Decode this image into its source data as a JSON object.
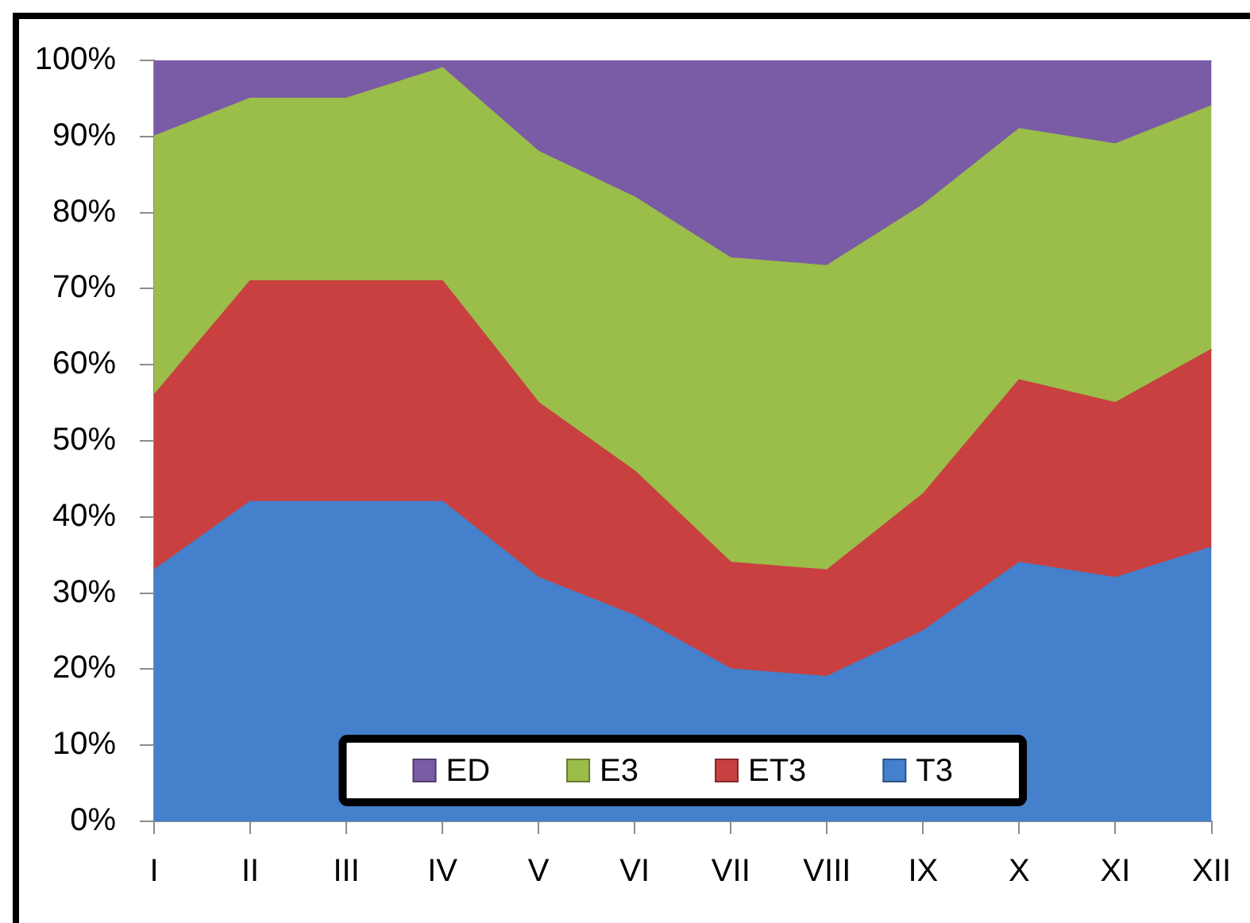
{
  "chart_data": {
    "type": "area",
    "stacked": true,
    "categories": [
      "I",
      "II",
      "III",
      "IV",
      "V",
      "VI",
      "VII",
      "VIII",
      "IX",
      "X",
      "XI",
      "XII"
    ],
    "series": [
      {
        "name": "T3",
        "color": "#4480cc",
        "values": [
          33,
          42,
          42,
          42,
          32,
          27,
          20,
          19,
          25,
          34,
          32,
          36
        ]
      },
      {
        "name": "ET3",
        "color": "#c94040",
        "values": [
          23,
          29,
          29,
          29,
          23,
          19,
          14,
          14,
          18,
          24,
          23,
          26
        ]
      },
      {
        "name": "E3",
        "color": "#9bbd4a",
        "values": [
          34,
          24,
          24,
          28,
          33,
          36,
          40,
          40,
          38,
          33,
          34,
          32
        ]
      },
      {
        "name": "ED",
        "color": "#7a5ba6",
        "values": [
          10,
          5,
          5,
          1,
          12,
          18,
          26,
          27,
          19,
          9,
          11,
          6
        ]
      }
    ],
    "ylim": [
      0,
      100
    ],
    "yticks": [
      {
        "value": 0,
        "label": "0%"
      },
      {
        "value": 10,
        "label": "10%"
      },
      {
        "value": 20,
        "label": "20%"
      },
      {
        "value": 30,
        "label": "30%"
      },
      {
        "value": 40,
        "label": "40%"
      },
      {
        "value": 50,
        "label": "50%"
      },
      {
        "value": 60,
        "label": "60%"
      },
      {
        "value": 70,
        "label": "70%"
      },
      {
        "value": 80,
        "label": "80%"
      },
      {
        "value": 90,
        "label": "90%"
      },
      {
        "value": 100,
        "label": "100%"
      }
    ],
    "grid": false,
    "legend": "bottom"
  }
}
